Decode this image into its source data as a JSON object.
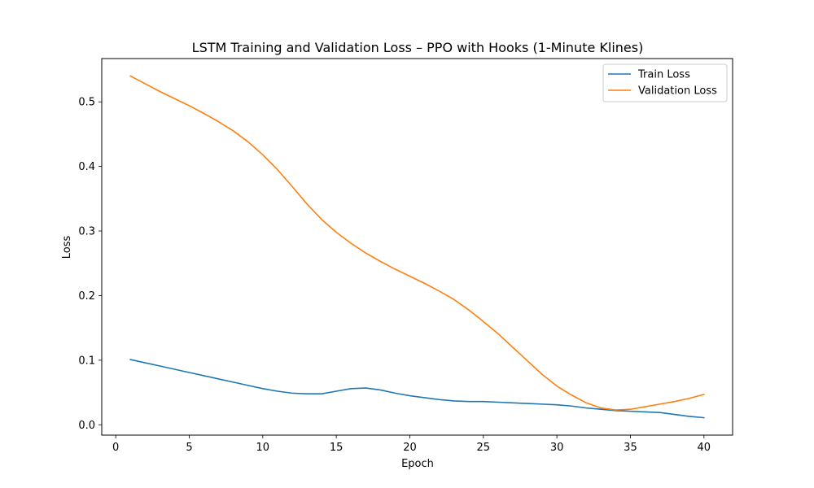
{
  "chart_data": {
    "type": "line",
    "title": "LSTM Training and Validation Loss – PPO with Hooks (1-Minute Klines)",
    "xlabel": "Epoch",
    "ylabel": "Loss",
    "xlim": [
      -0.95,
      41.95
    ],
    "ylim": [
      -0.016,
      0.567
    ],
    "xticks": [
      0,
      5,
      10,
      15,
      20,
      25,
      30,
      35,
      40
    ],
    "xtick_labels": [
      "0",
      "5",
      "10",
      "15",
      "20",
      "25",
      "30",
      "35",
      "40"
    ],
    "yticks": [
      0.0,
      0.1,
      0.2,
      0.3,
      0.4,
      0.5
    ],
    "ytick_labels": [
      "0.0",
      "0.1",
      "0.2",
      "0.3",
      "0.4",
      "0.5"
    ],
    "grid": false,
    "legend_position": "top-right",
    "x": [
      1,
      2,
      3,
      4,
      5,
      6,
      7,
      8,
      9,
      10,
      11,
      12,
      13,
      14,
      15,
      16,
      17,
      18,
      19,
      20,
      21,
      22,
      23,
      24,
      25,
      26,
      27,
      28,
      29,
      30,
      31,
      32,
      33,
      34,
      35,
      36,
      37,
      38,
      39,
      40
    ],
    "series": [
      {
        "name": "Train Loss",
        "color": "#1f77b4",
        "values": [
          0.101,
          0.096,
          0.091,
          0.086,
          0.081,
          0.076,
          0.071,
          0.066,
          0.061,
          0.056,
          0.052,
          0.049,
          0.048,
          0.048,
          0.052,
          0.056,
          0.057,
          0.054,
          0.049,
          0.045,
          0.042,
          0.039,
          0.037,
          0.036,
          0.036,
          0.035,
          0.034,
          0.033,
          0.032,
          0.031,
          0.029,
          0.026,
          0.024,
          0.022,
          0.021,
          0.02,
          0.019,
          0.016,
          0.013,
          0.011
        ]
      },
      {
        "name": "Validation Loss",
        "color": "#ff7f0e",
        "values": [
          0.54,
          0.528,
          0.516,
          0.505,
          0.494,
          0.482,
          0.469,
          0.455,
          0.438,
          0.418,
          0.395,
          0.369,
          0.342,
          0.318,
          0.298,
          0.281,
          0.266,
          0.253,
          0.241,
          0.23,
          0.219,
          0.207,
          0.194,
          0.178,
          0.16,
          0.141,
          0.12,
          0.099,
          0.078,
          0.06,
          0.046,
          0.034,
          0.026,
          0.023,
          0.024,
          0.028,
          0.032,
          0.036,
          0.041,
          0.047
        ]
      }
    ]
  }
}
